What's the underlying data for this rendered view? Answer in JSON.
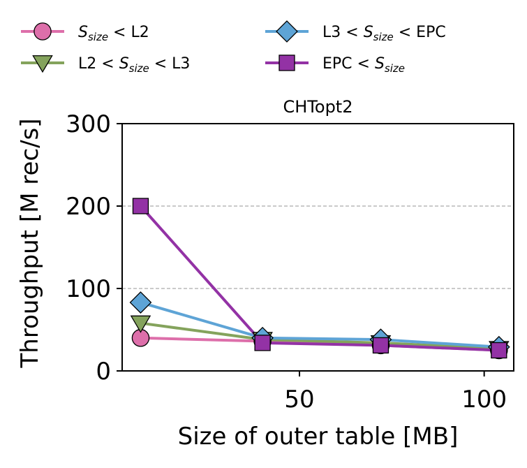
{
  "chart_data": {
    "type": "line",
    "title": "CHTopt2",
    "xlabel": "Size of outer table [MB]",
    "ylabel": "Throughput [M rec/s]",
    "xlim": [
      2,
      108
    ],
    "ylim": [
      0,
      300
    ],
    "xticks": [
      50,
      100
    ],
    "yticks": [
      0,
      100,
      200,
      300
    ],
    "grid": "horizontal dashed at 100 and 200",
    "legend_position": "top, above plot, two columns",
    "x": [
      7,
      40,
      72,
      104
    ],
    "series": [
      {
        "name": "S_size < L2",
        "legend_parts": [
          {
            "text": "S",
            "style": "italic"
          },
          {
            "text": "size",
            "style": "sub"
          },
          {
            "text": " < L2",
            "style": "normal"
          }
        ],
        "color": "#DD6FAA",
        "marker": "circle",
        "values": [
          40,
          36,
          31,
          25
        ]
      },
      {
        "name": "L2 < S_size < L3",
        "legend_parts": [
          {
            "text": "L2 < ",
            "style": "normal"
          },
          {
            "text": "S",
            "style": "italic"
          },
          {
            "text": "size",
            "style": "sub"
          },
          {
            "text": " < L3",
            "style": "normal"
          }
        ],
        "color": "#84A35C",
        "marker": "triangle-down",
        "values": [
          58,
          38,
          34,
          27
        ]
      },
      {
        "name": "L3 < S_size < EPC",
        "legend_parts": [
          {
            "text": "L3 < ",
            "style": "normal"
          },
          {
            "text": "S",
            "style": "italic"
          },
          {
            "text": "size",
            "style": "sub"
          },
          {
            "text": " < EPC",
            "style": "normal"
          }
        ],
        "color": "#5EA4D6",
        "marker": "diamond",
        "values": [
          83,
          40,
          38,
          29
        ]
      },
      {
        "name": "EPC < S_size",
        "legend_parts": [
          {
            "text": "EPC < ",
            "style": "normal"
          },
          {
            "text": "S",
            "style": "italic"
          },
          {
            "text": "size",
            "style": "sub"
          }
        ],
        "color": "#9332A5",
        "marker": "square",
        "values": [
          200,
          34,
          31,
          25
        ]
      }
    ]
  },
  "colors": {
    "grid": "#AAAAAA",
    "axis": "#000000",
    "marker_edge": "#000000"
  }
}
